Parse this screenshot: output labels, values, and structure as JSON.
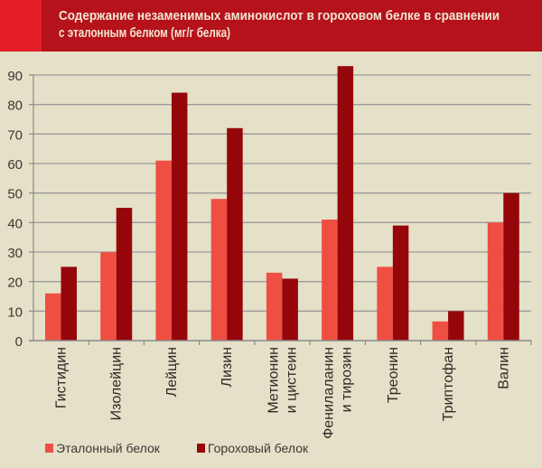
{
  "title_lines": [
    "Содержание незаменимых аминокислот в гороховом белке в сравнении",
    "с эталонным белком (мг/г белка)"
  ],
  "colors": {
    "header": "#b5121b",
    "header_accent": "#e31e26",
    "background": "#e5e0c8",
    "reference": "#ef4f43",
    "pea": "#95060b",
    "grid": "#9a9a9a",
    "title_text": "#f3e6d0"
  },
  "chart_data": {
    "type": "bar",
    "title": "Содержание незаменимых аминокислот в гороховом белке в сравнении с эталонным белком (мг/г белка)",
    "xlabel": "",
    "ylabel": "",
    "ylim": [
      0,
      90
    ],
    "yticks": [
      0,
      10,
      20,
      30,
      40,
      50,
      60,
      70,
      80,
      90
    ],
    "grid": true,
    "legend_position": "bottom-left",
    "categories": [
      [
        "Гистидин"
      ],
      [
        "Изолейцин"
      ],
      [
        "Лейцин"
      ],
      [
        "Лизин"
      ],
      [
        "Метионин",
        "и цистеин"
      ],
      [
        "Фенилаланин",
        "и тирозин"
      ],
      [
        "Треонин"
      ],
      [
        "Триптофан"
      ],
      [
        "Валин"
      ]
    ],
    "series": [
      {
        "name": "Эталонный белок",
        "color": "#ef4f43",
        "values": [
          16,
          30,
          61,
          48,
          23,
          41,
          25,
          6.5,
          40
        ]
      },
      {
        "name": "Гороховый белок",
        "color": "#95060b",
        "values": [
          25,
          45,
          84,
          72,
          21,
          93,
          39,
          10,
          50
        ]
      }
    ]
  }
}
